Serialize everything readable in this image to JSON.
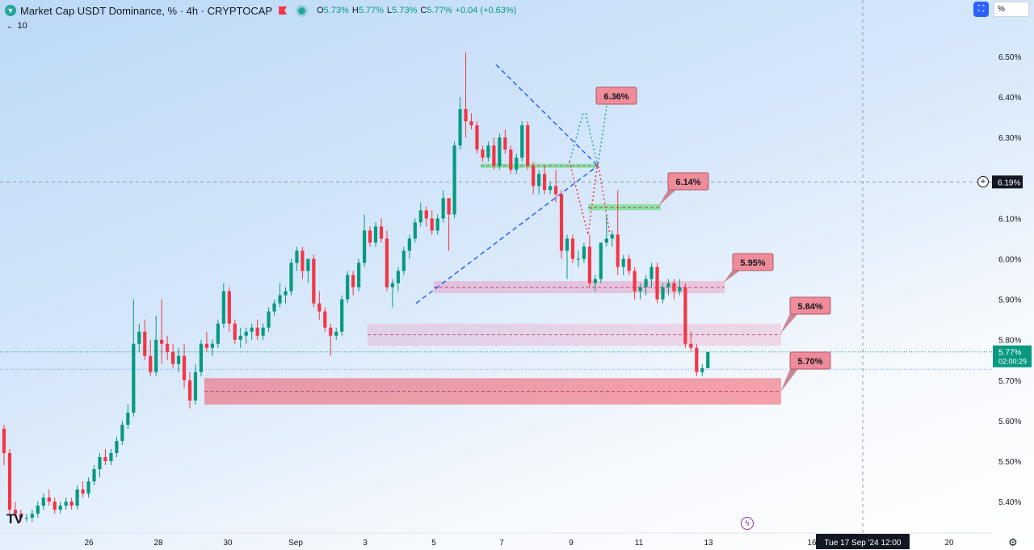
{
  "header": {
    "title": "Market Cap USDT Dominance, % · 4h · CRYPTOCAP",
    "open_label": "O",
    "open": "5.73%",
    "high_label": "H",
    "high": "5.77%",
    "low_label": "L",
    "low": "5.73%",
    "close_label": "C",
    "close": "5.77%",
    "change": "+0.04 (+0.63%)",
    "indicator_value": "10",
    "scale_mode": "%",
    "icons": [
      "symbol-logo-icon",
      "flag-icon",
      "market-status-icon",
      "chevron-down-icon",
      "maximize-icon"
    ]
  },
  "colors": {
    "up": "#089981",
    "down": "#f23645",
    "background_top": "#bcd9f7",
    "background_bottom": "#ffffff"
  },
  "price_axis": {
    "current_price": "5.77%",
    "countdown": "02:00:29",
    "crosshair_price": "6.19%"
  },
  "time_axis": {
    "crosshair_time": "Tue 17 Sep '24   12:00"
  },
  "chart_data": {
    "type": "candlestick",
    "interval": "4h",
    "x_tick_labels": [
      "26",
      "28",
      "30",
      "Sep",
      "3",
      "5",
      "7",
      "9",
      "11",
      "13",
      "16",
      "20"
    ],
    "y_tick_labels": [
      "6.50%",
      "6.40%",
      "6.30%",
      "6.20%",
      "6.10%",
      "6.00%",
      "5.90%",
      "5.80%",
      "5.70%",
      "5.60%",
      "5.50%",
      "5.40%"
    ],
    "ylim": [
      5.36,
      6.56
    ],
    "grid": false,
    "candles": [
      [
        5.58,
        5.59,
        5.49,
        5.52
      ],
      [
        5.52,
        5.53,
        5.37,
        5.38
      ],
      [
        5.38,
        5.4,
        5.36,
        5.37
      ],
      [
        5.37,
        5.38,
        5.35,
        5.36
      ],
      [
        5.36,
        5.37,
        5.35,
        5.36
      ],
      [
        5.36,
        5.38,
        5.35,
        5.37
      ],
      [
        5.37,
        5.4,
        5.36,
        5.39
      ],
      [
        5.39,
        5.42,
        5.38,
        5.41
      ],
      [
        5.41,
        5.43,
        5.39,
        5.4
      ],
      [
        5.4,
        5.41,
        5.37,
        5.38
      ],
      [
        5.38,
        5.4,
        5.37,
        5.39
      ],
      [
        5.39,
        5.41,
        5.38,
        5.4
      ],
      [
        5.4,
        5.41,
        5.38,
        5.39
      ],
      [
        5.39,
        5.44,
        5.38,
        5.43
      ],
      [
        5.43,
        5.45,
        5.41,
        5.42
      ],
      [
        5.42,
        5.46,
        5.41,
        5.45
      ],
      [
        5.45,
        5.49,
        5.44,
        5.48
      ],
      [
        5.48,
        5.52,
        5.46,
        5.51
      ],
      [
        5.51,
        5.53,
        5.49,
        5.5
      ],
      [
        5.5,
        5.53,
        5.49,
        5.52
      ],
      [
        5.52,
        5.56,
        5.51,
        5.55
      ],
      [
        5.55,
        5.6,
        5.54,
        5.59
      ],
      [
        5.59,
        5.64,
        5.58,
        5.62
      ],
      [
        5.62,
        5.9,
        5.61,
        5.79
      ],
      [
        5.79,
        5.84,
        5.77,
        5.82
      ],
      [
        5.82,
        5.85,
        5.75,
        5.76
      ],
      [
        5.76,
        5.8,
        5.71,
        5.72
      ],
      [
        5.72,
        5.86,
        5.71,
        5.8
      ],
      [
        5.8,
        5.9,
        5.74,
        5.79
      ],
      [
        5.79,
        5.81,
        5.75,
        5.77
      ],
      [
        5.77,
        5.79,
        5.73,
        5.74
      ],
      [
        5.74,
        5.78,
        5.72,
        5.76
      ],
      [
        5.76,
        5.79,
        5.68,
        5.7
      ],
      [
        5.7,
        5.72,
        5.63,
        5.65
      ],
      [
        5.65,
        5.74,
        5.64,
        5.72
      ],
      [
        5.72,
        5.8,
        5.71,
        5.79
      ],
      [
        5.79,
        5.82,
        5.77,
        5.78
      ],
      [
        5.78,
        5.8,
        5.76,
        5.79
      ],
      [
        5.79,
        5.85,
        5.78,
        5.84
      ],
      [
        5.84,
        5.94,
        5.83,
        5.92
      ],
      [
        5.92,
        5.93,
        5.82,
        5.84
      ],
      [
        5.84,
        5.85,
        5.79,
        5.8
      ],
      [
        5.8,
        5.83,
        5.78,
        5.81
      ],
      [
        5.81,
        5.83,
        5.79,
        5.82
      ],
      [
        5.82,
        5.84,
        5.8,
        5.83
      ],
      [
        5.83,
        5.85,
        5.8,
        5.81
      ],
      [
        5.81,
        5.84,
        5.8,
        5.83
      ],
      [
        5.83,
        5.88,
        5.82,
        5.87
      ],
      [
        5.87,
        5.9,
        5.86,
        5.89
      ],
      [
        5.89,
        5.94,
        5.88,
        5.91
      ],
      [
        5.91,
        5.93,
        5.89,
        5.92
      ],
      [
        5.92,
        6.0,
        5.91,
        5.99
      ],
      [
        5.99,
        6.03,
        5.97,
        6.02
      ],
      [
        6.02,
        6.03,
        5.95,
        5.97
      ],
      [
        5.97,
        6.0,
        5.94,
        6.0
      ],
      [
        6.0,
        6.01,
        5.88,
        5.89
      ],
      [
        5.89,
        5.92,
        5.85,
        5.87
      ],
      [
        5.87,
        5.88,
        5.82,
        5.83
      ],
      [
        5.83,
        5.84,
        5.76,
        5.81
      ],
      [
        5.81,
        5.83,
        5.8,
        5.82
      ],
      [
        5.82,
        5.91,
        5.81,
        5.9
      ],
      [
        5.9,
        5.97,
        5.89,
        5.96
      ],
      [
        5.96,
        5.97,
        5.91,
        5.93
      ],
      [
        5.93,
        6.0,
        5.92,
        5.99
      ],
      [
        5.99,
        6.11,
        5.98,
        6.07
      ],
      [
        6.07,
        6.08,
        6.03,
        6.04
      ],
      [
        6.04,
        6.09,
        6.03,
        6.08
      ],
      [
        6.08,
        6.1,
        6.04,
        6.05
      ],
      [
        6.05,
        6.07,
        5.92,
        5.93
      ],
      [
        5.93,
        5.95,
        5.88,
        5.94
      ],
      [
        5.94,
        5.98,
        5.92,
        5.97
      ],
      [
        5.97,
        6.03,
        5.96,
        6.02
      ],
      [
        6.02,
        6.06,
        6.0,
        6.05
      ],
      [
        6.05,
        6.1,
        6.04,
        6.09
      ],
      [
        6.09,
        6.14,
        6.08,
        6.12
      ],
      [
        6.12,
        6.13,
        6.08,
        6.1
      ],
      [
        6.1,
        6.12,
        6.06,
        6.07
      ],
      [
        6.07,
        6.11,
        6.06,
        6.1
      ],
      [
        6.1,
        6.17,
        6.09,
        6.15
      ],
      [
        6.15,
        6.15,
        6.02,
        6.11
      ],
      [
        6.11,
        6.29,
        6.1,
        6.28
      ],
      [
        6.28,
        6.4,
        6.27,
        6.37
      ],
      [
        6.37,
        6.51,
        6.3,
        6.34
      ],
      [
        6.34,
        6.36,
        6.32,
        6.33
      ],
      [
        6.33,
        6.34,
        6.26,
        6.27
      ],
      [
        6.27,
        6.28,
        6.24,
        6.25
      ],
      [
        6.25,
        6.29,
        6.24,
        6.28
      ],
      [
        6.28,
        6.3,
        6.22,
        6.23
      ],
      [
        6.23,
        6.31,
        6.22,
        6.3
      ],
      [
        6.3,
        6.32,
        6.26,
        6.27
      ],
      [
        6.27,
        6.28,
        6.21,
        6.22
      ],
      [
        6.22,
        6.26,
        6.21,
        6.25
      ],
      [
        6.25,
        6.34,
        6.24,
        6.33
      ],
      [
        6.33,
        6.34,
        6.22,
        6.23
      ],
      [
        6.23,
        6.24,
        6.16,
        6.18
      ],
      [
        6.18,
        6.22,
        6.16,
        6.21
      ],
      [
        6.21,
        6.23,
        6.16,
        6.17
      ],
      [
        6.17,
        6.19,
        6.16,
        6.18
      ],
      [
        6.18,
        6.22,
        6.14,
        6.16
      ],
      [
        6.16,
        6.17,
        6.0,
        6.02
      ],
      [
        6.02,
        6.06,
        5.95,
        6.05
      ],
      [
        6.05,
        6.06,
        5.99,
        6.0
      ],
      [
        6.0,
        6.02,
        5.98,
        6.0
      ],
      [
        6.0,
        6.04,
        5.99,
        6.03
      ],
      [
        6.03,
        6.06,
        5.93,
        5.94
      ],
      [
        5.94,
        5.96,
        5.92,
        5.95
      ],
      [
        5.95,
        6.04,
        5.94,
        6.04
      ],
      [
        6.04,
        6.11,
        6.03,
        6.05
      ],
      [
        6.05,
        6.07,
        6.03,
        6.06
      ],
      [
        6.06,
        6.17,
        5.96,
        5.98
      ],
      [
        5.98,
        6.01,
        5.96,
        6.0
      ],
      [
        6.0,
        6.01,
        5.96,
        5.97
      ],
      [
        5.97,
        5.98,
        5.9,
        5.92
      ],
      [
        5.92,
        5.94,
        5.9,
        5.93
      ],
      [
        5.93,
        5.96,
        5.91,
        5.95
      ],
      [
        5.95,
        5.99,
        5.93,
        5.98
      ],
      [
        5.98,
        5.99,
        5.89,
        5.9
      ],
      [
        5.9,
        5.94,
        5.89,
        5.93
      ],
      [
        5.93,
        5.95,
        5.91,
        5.94
      ],
      [
        5.94,
        5.95,
        5.9,
        5.92
      ],
      [
        5.92,
        5.95,
        5.91,
        5.93
      ],
      [
        5.93,
        5.94,
        5.78,
        5.79
      ],
      [
        5.79,
        5.82,
        5.77,
        5.78
      ],
      [
        5.78,
        5.79,
        5.71,
        5.72
      ],
      [
        5.72,
        5.74,
        5.71,
        5.73
      ],
      [
        5.73,
        5.77,
        5.73,
        5.77
      ]
    ],
    "current_price": 5.77,
    "annotations": [
      {
        "type": "label",
        "text": "6.36%",
        "value": 6.36
      },
      {
        "type": "label",
        "text": "6.14%",
        "value": 6.14
      },
      {
        "type": "label",
        "text": "5.95%",
        "value": 5.95
      },
      {
        "type": "label",
        "text": "5.84%",
        "value": 5.84
      },
      {
        "type": "label",
        "text": "5.70%",
        "value": 5.7
      }
    ],
    "zones": [
      {
        "color": "green",
        "from": 6.225,
        "to": 6.235
      },
      {
        "color": "green",
        "from": 6.12,
        "to": 6.135
      },
      {
        "color": "pink",
        "from": 5.915,
        "to": 5.945
      },
      {
        "color": "light-pink",
        "from": 5.785,
        "to": 5.84
      },
      {
        "color": "red",
        "from": 5.64,
        "to": 5.705
      }
    ]
  }
}
